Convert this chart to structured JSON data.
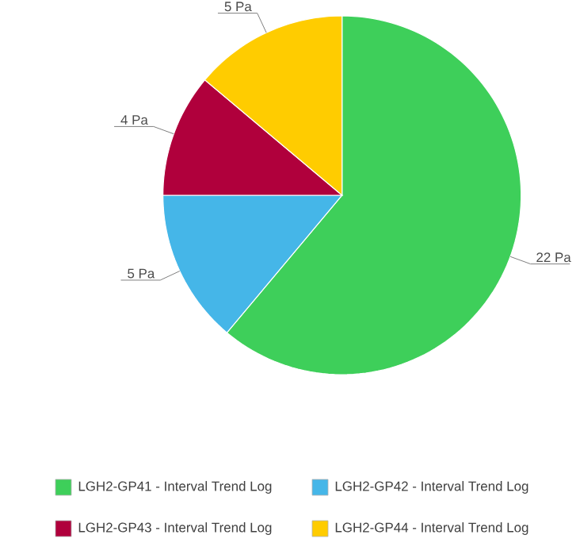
{
  "chart_data": {
    "type": "pie",
    "categories": [
      "LGH2-GP41 - Interval Trend Log",
      "LGH2-GP42 - Interval Trend Log",
      "LGH2-GP43 - Interval Trend Log",
      "LGH2-GP44 - Interval Trend Log"
    ],
    "values": [
      22,
      5,
      4,
      5
    ],
    "colors": [
      "#3ecf5a",
      "#45b6e8",
      "#b0003c",
      "#ffcc00"
    ],
    "value_labels": [
      "22 Pa",
      "5 Pa",
      "4 Pa",
      "5 Pa"
    ],
    "legend": "bottom"
  }
}
